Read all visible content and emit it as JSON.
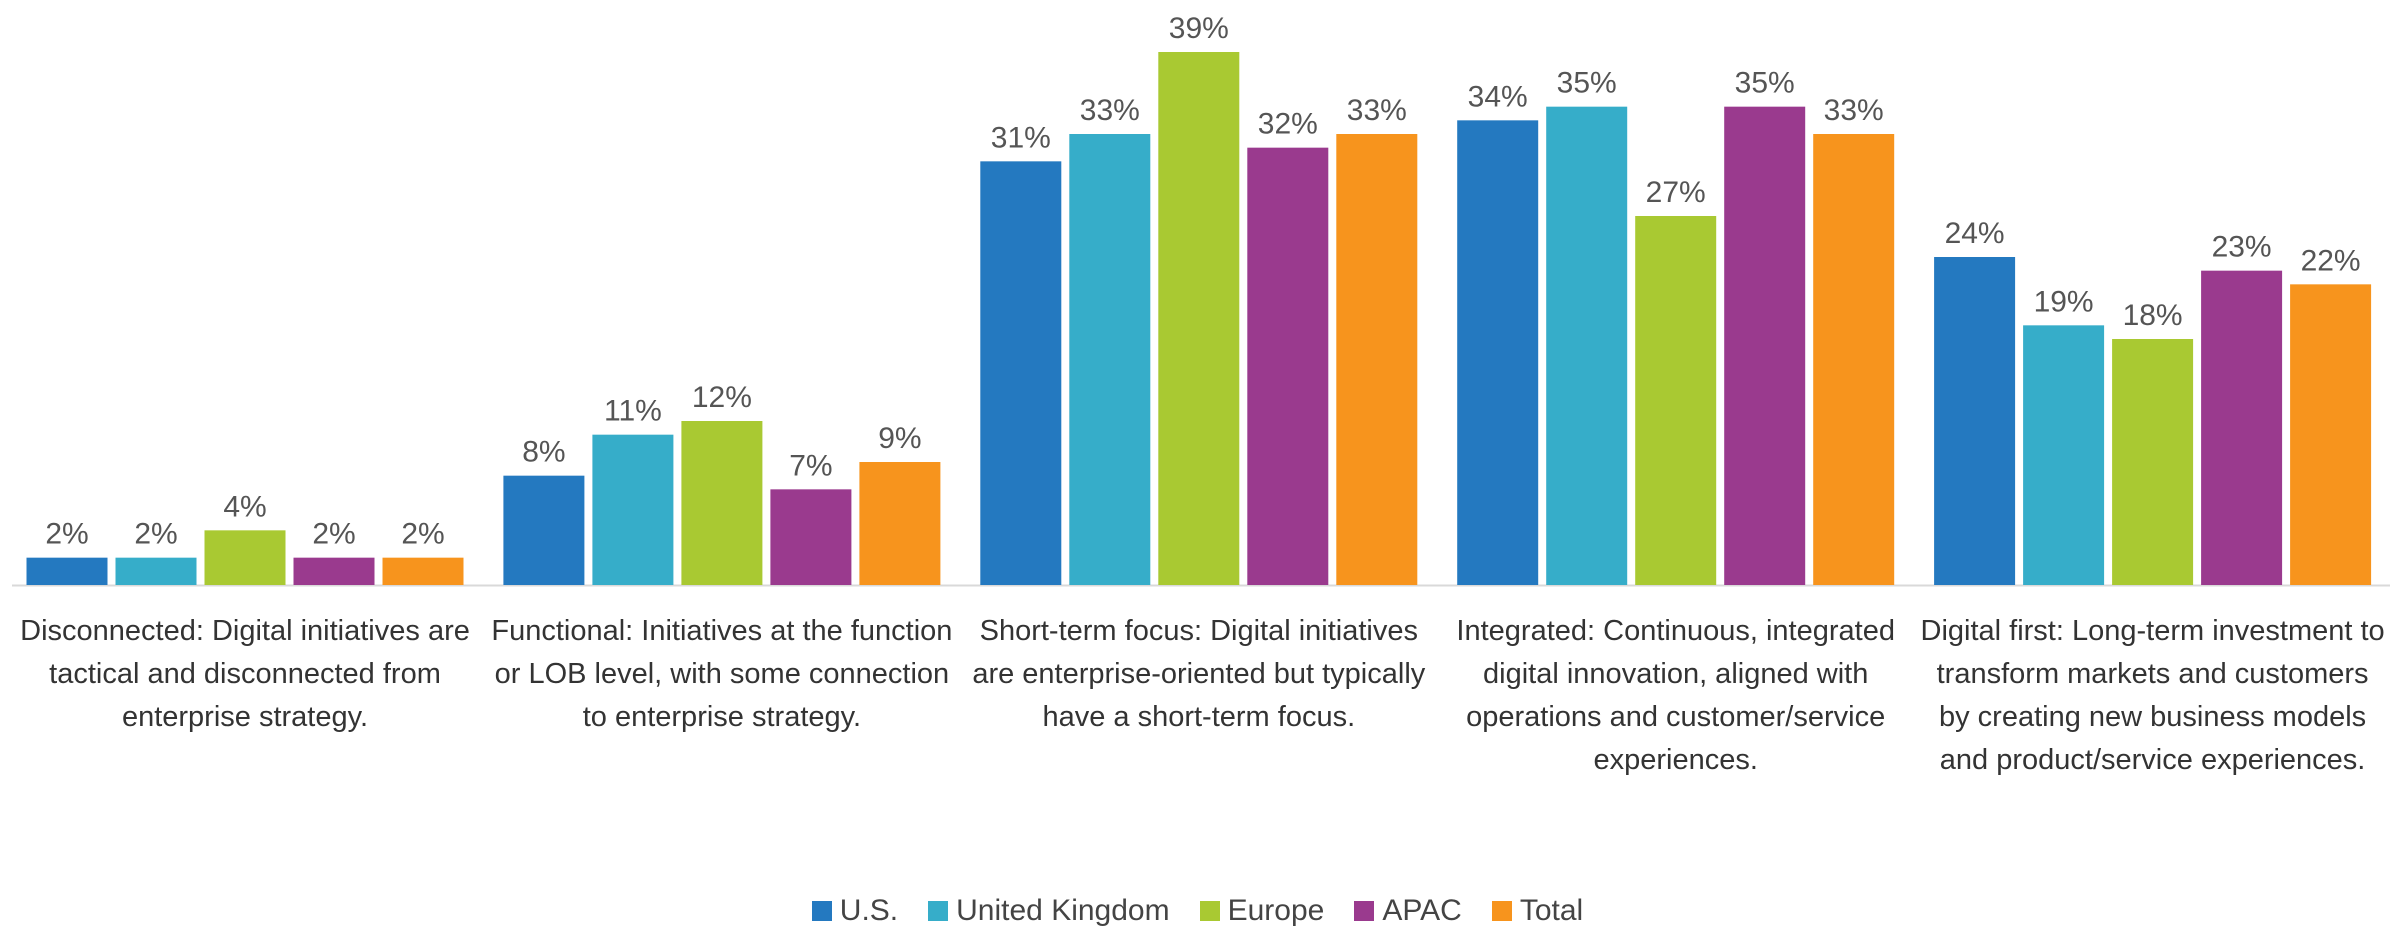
{
  "chart_data": {
    "type": "bar",
    "categories": [
      "Disconnected: Digital initiatives are tactical and disconnected from enterprise strategy.",
      "Functional: Initiatives at the function or LOB level, with some connection to enterprise strategy.",
      "Short-term focus: Digital initiatives are enterprise-oriented but typically have a short-term focus.",
      "Integrated: Continuous, integrated digital innovation, aligned with operations and customer/service experiences.",
      "Digital first: Long-term investment to transform markets and customers by creating new business models and product/service experiences."
    ],
    "series": [
      {
        "name": "U.S.",
        "color": "#2479c0",
        "values": [
          2,
          8,
          31,
          34,
          24
        ],
        "value_labels": [
          "2%",
          "8%",
          "31%",
          "34%",
          "24%"
        ]
      },
      {
        "name": "United Kingdom",
        "color": "#36adc9",
        "values": [
          2,
          11,
          33,
          35,
          19
        ],
        "value_labels": [
          "2%",
          "11%",
          "33%",
          "35%",
          "19%"
        ]
      },
      {
        "name": "Europe",
        "color": "#a9c932",
        "values": [
          4,
          12,
          39,
          27,
          18
        ],
        "value_labels": [
          "4%",
          "12%",
          "39%",
          "27%",
          "18%"
        ]
      },
      {
        "name": "APAC",
        "color": "#9a3a8e",
        "values": [
          2,
          7,
          32,
          35,
          23
        ],
        "value_labels": [
          "2%",
          "7%",
          "32%",
          "35%",
          "23%"
        ]
      },
      {
        "name": "Total",
        "color": "#f7941d",
        "values": [
          2,
          9,
          33,
          33,
          22
        ],
        "value_labels": [
          "2%",
          "9%",
          "33%",
          "33%",
          "22%"
        ]
      }
    ]
  }
}
